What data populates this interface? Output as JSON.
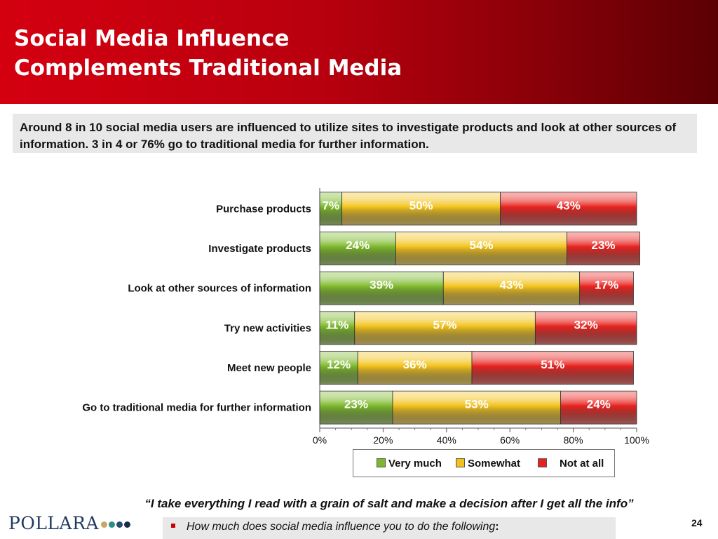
{
  "header": {
    "title_line1": "Social Media Influence",
    "title_line2": "Complements Traditional Media",
    "accent_color": "#cc0000"
  },
  "callout": {
    "text": "Around 8 in 10 social media users are influenced to utilize sites to investigate products and look at other sources of information. 3 in 4 or 76% go to traditional media for further information."
  },
  "chart_data": {
    "type": "bar",
    "orientation": "horizontal",
    "stacked": true,
    "categories": [
      "Purchase products",
      "Investigate products",
      "Look at other sources of information",
      "Try new activities",
      "Meet new people",
      "Go to traditional media for further information"
    ],
    "series": [
      {
        "name": "Very much",
        "color": "#7cb82a",
        "values": [
          7,
          24,
          39,
          11,
          12,
          23
        ]
      },
      {
        "name": "Somewhat",
        "color": "#f2c21b",
        "values": [
          50,
          54,
          43,
          57,
          36,
          53
        ]
      },
      {
        "name": "Not at all",
        "color": "#e8221e",
        "values": [
          43,
          23,
          17,
          32,
          51,
          24
        ]
      }
    ],
    "xlim": [
      0,
      100
    ],
    "x_ticks": [
      "0%",
      "20%",
      "40%",
      "60%",
      "80%",
      "100%"
    ],
    "value_suffix": "%",
    "legend_position": "bottom"
  },
  "quote": "“I take everything I read with a grain of salt and make a decision after I get all the info”",
  "logo": {
    "text": "POLLARA",
    "dot_colors": [
      "#c8a865",
      "#2a8f86",
      "#2a4a6e",
      "#1a2c4a"
    ]
  },
  "footnote": {
    "text": "How much does social media influence you to do the following",
    "suffix": ":"
  },
  "page_number": "24"
}
